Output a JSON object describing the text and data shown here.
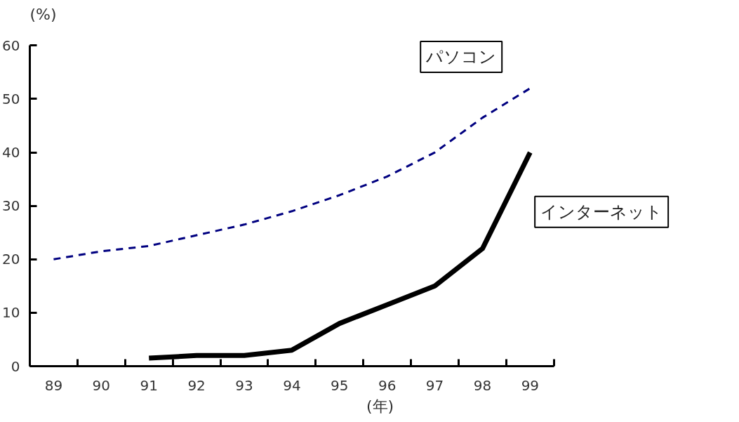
{
  "chart_data": {
    "type": "line",
    "ylabel": "(%)",
    "xlabel": "(年)",
    "categories": [
      "89",
      "90",
      "91",
      "92",
      "93",
      "94",
      "95",
      "96",
      "97",
      "98",
      "99"
    ],
    "ylim": [
      0,
      60
    ],
    "yticks": [
      0,
      10,
      20,
      30,
      40,
      50,
      60
    ],
    "grid": false,
    "marker": "none",
    "series": [
      {
        "name": "パソコン",
        "color": "#000080",
        "line_style": "dashed",
        "values": [
          20,
          21.5,
          22.5,
          24.5,
          26.5,
          29,
          32,
          35.5,
          40,
          46.5,
          52
        ]
      },
      {
        "name": "インターネット",
        "color": "#000000",
        "line_style": "solid",
        "values": [
          null,
          null,
          1.5,
          2,
          2,
          3,
          8,
          11.5,
          15,
          22,
          40
        ]
      }
    ]
  }
}
